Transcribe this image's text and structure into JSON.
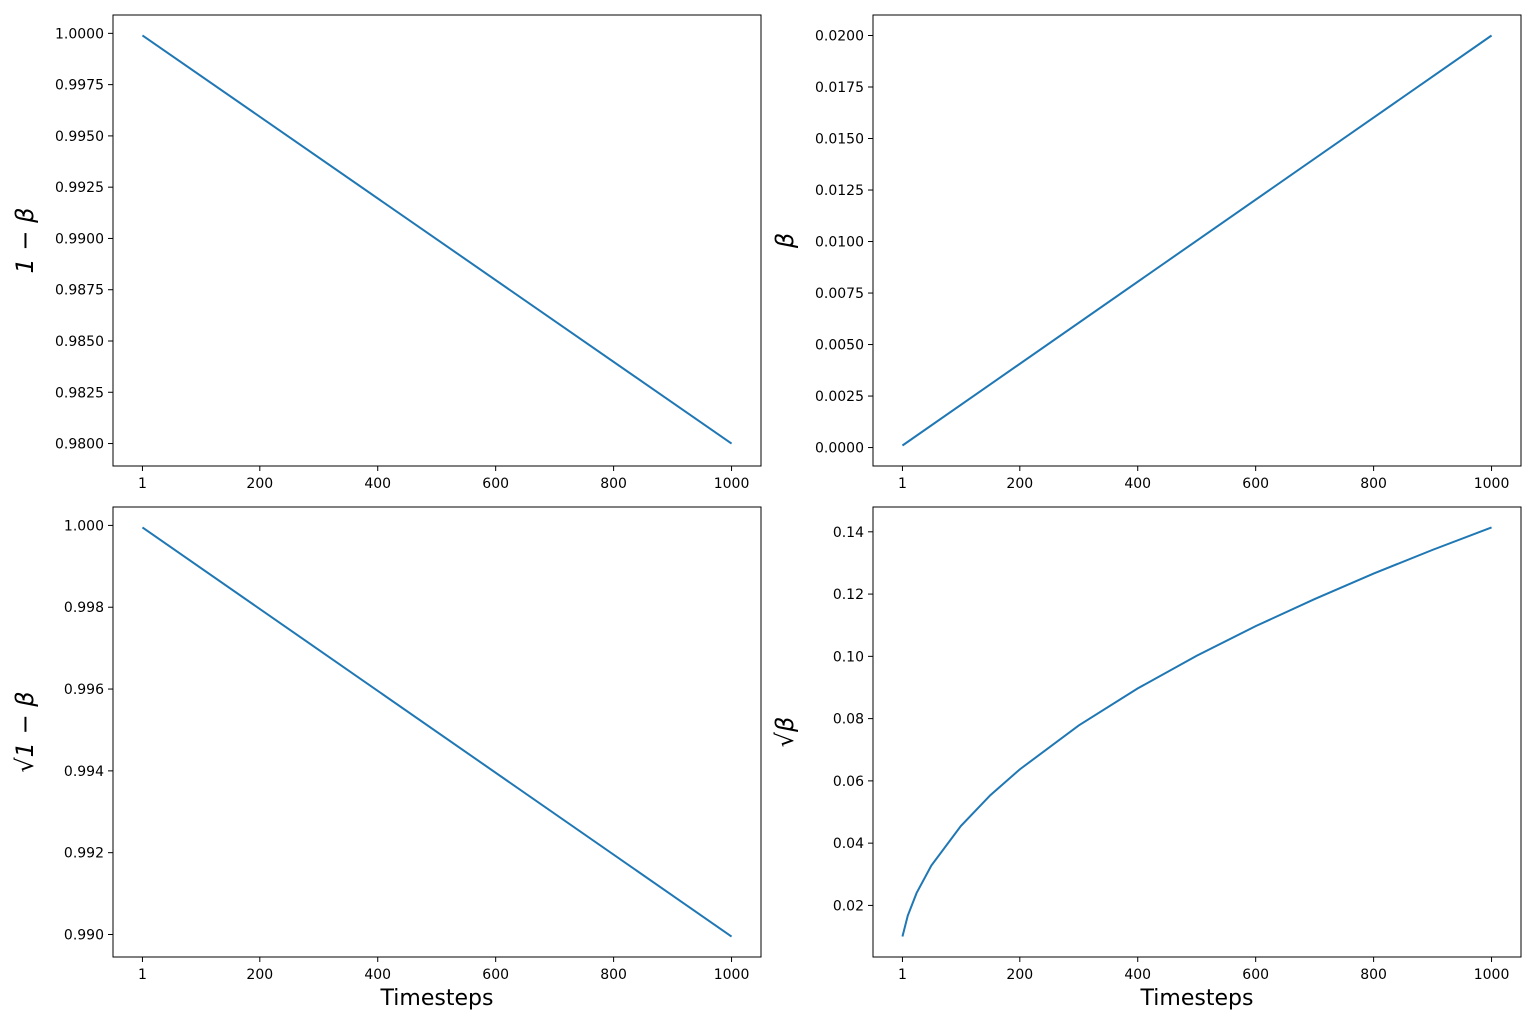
{
  "chart_data": [
    {
      "type": "line",
      "y_label": "1 − β",
      "x": [
        1,
        1000
      ],
      "series": [
        {
          "color": "#1f77b4",
          "values": [
            0.9999,
            0.98
          ]
        }
      ],
      "xlim": [
        -48.95,
        1049.95
      ],
      "xticks": [
        1,
        200,
        400,
        600,
        800,
        1000
      ],
      "ylim": [
        0.978905,
        1.000895
      ],
      "yticks": [
        {
          "value": 1.0,
          "label": "1.0000"
        },
        {
          "value": 0.9975,
          "label": "0.9975"
        },
        {
          "value": 0.995,
          "label": "0.9950"
        },
        {
          "value": 0.9925,
          "label": "0.9925"
        },
        {
          "value": 0.99,
          "label": "0.9900"
        },
        {
          "value": 0.9875,
          "label": "0.9875"
        },
        {
          "value": 0.985,
          "label": "0.9850"
        },
        {
          "value": 0.9825,
          "label": "0.9825"
        },
        {
          "value": 0.98,
          "label": "0.9800"
        }
      ]
    },
    {
      "type": "line",
      "y_label": "β",
      "x": [
        1,
        1000
      ],
      "series": [
        {
          "color": "#1f77b4",
          "values": [
            0.0001,
            0.02
          ]
        }
      ],
      "xlim": [
        -48.95,
        1049.95
      ],
      "xticks": [
        1,
        200,
        400,
        600,
        800,
        1000
      ],
      "ylim": [
        -0.000895,
        0.020995
      ],
      "yticks": [
        {
          "value": 0.02,
          "label": "0.0200"
        },
        {
          "value": 0.0175,
          "label": "0.0175"
        },
        {
          "value": 0.015,
          "label": "0.0150"
        },
        {
          "value": 0.0125,
          "label": "0.0125"
        },
        {
          "value": 0.01,
          "label": "0.0100"
        },
        {
          "value": 0.0075,
          "label": "0.0075"
        },
        {
          "value": 0.005,
          "label": "0.0050"
        },
        {
          "value": 0.0025,
          "label": "0.0025"
        },
        {
          "value": 0,
          "label": "0.0000"
        }
      ]
    },
    {
      "type": "line",
      "y_label": "√1 − β",
      "x_label": "Timesteps",
      "x": [
        1,
        1000
      ],
      "series": [
        {
          "color": "#1f77b4",
          "values": [
            0.99995,
            0.98995
          ]
        }
      ],
      "xlim": [
        -48.95,
        1049.95
      ],
      "xticks": [
        1,
        200,
        400,
        600,
        800,
        1000
      ],
      "ylim": [
        0.98945,
        1.00045
      ],
      "yticks": [
        {
          "value": 1.0,
          "label": "1.000"
        },
        {
          "value": 0.998,
          "label": "0.998"
        },
        {
          "value": 0.996,
          "label": "0.996"
        },
        {
          "value": 0.994,
          "label": "0.994"
        },
        {
          "value": 0.992,
          "label": "0.992"
        },
        {
          "value": 0.99,
          "label": "0.990"
        }
      ]
    },
    {
      "type": "line",
      "y_label": "√β",
      "x_label": "Timesteps",
      "x": [
        1,
        10,
        25,
        50,
        100,
        150,
        200,
        300,
        400,
        500,
        600,
        700,
        800,
        900,
        1000
      ],
      "series": [
        {
          "color": "#1f77b4",
          "values": [
            0.01,
            0.0167,
            0.024,
            0.0328,
            0.0455,
            0.0554,
            0.0637,
            0.0778,
            0.0897,
            0.1002,
            0.1097,
            0.1184,
            0.1266,
            0.1342,
            0.1414
          ]
        }
      ],
      "xlim": [
        -48.95,
        1049.95
      ],
      "xticks": [
        1,
        200,
        400,
        600,
        800,
        1000
      ],
      "ylim": [
        0.00343,
        0.14797
      ],
      "yticks": [
        0.14,
        0.12,
        {
          "value": 0.1,
          "label": "0.10"
        },
        0.08,
        0.06,
        0.04,
        0.02
      ]
    }
  ]
}
